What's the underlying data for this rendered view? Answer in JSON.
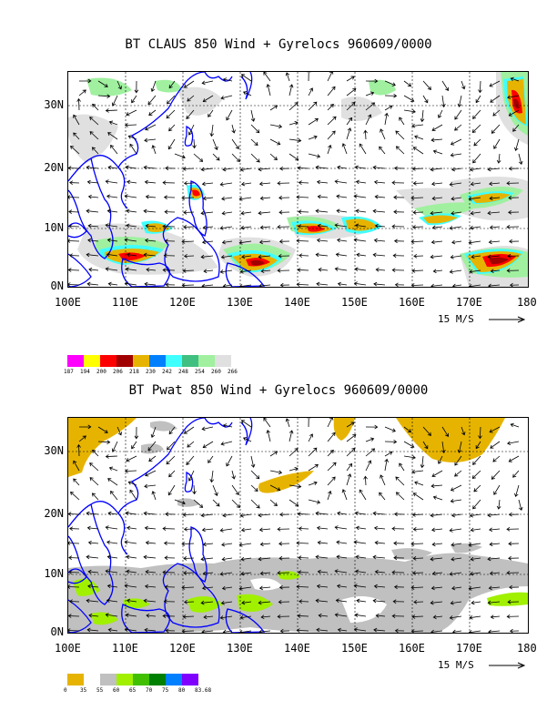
{
  "panel1": {
    "title": "BT CLAUS 850 Wind + Gyrelocs 960609/0000",
    "lat_labels": [
      "30N",
      "20N",
      "10N",
      "0N"
    ],
    "lon_labels": [
      "100E",
      "110E",
      "120E",
      "130E",
      "140E",
      "150E",
      "160E",
      "170E",
      "180"
    ],
    "scale_label": "15 M/S",
    "colorbar_colors": [
      "#ff00ff",
      "#ffff00",
      "#ff0000",
      "#a00000",
      "#e6b400",
      "#0080ff",
      "#40ffff",
      "#40c080",
      "#a0f0a0",
      "#e0e0e0"
    ],
    "colorbar_labels": [
      "187",
      "194",
      "200",
      "206",
      "218",
      "230",
      "242",
      "248",
      "254",
      "260",
      "266"
    ]
  },
  "panel2": {
    "title": "BT Pwat 850 Wind + Gyrelocs 960609/0000",
    "lat_labels": [
      "30N",
      "20N",
      "10N",
      "0N"
    ],
    "lon_labels": [
      "100E",
      "110E",
      "120E",
      "130E",
      "140E",
      "150E",
      "160E",
      "170E",
      "180"
    ],
    "scale_label": "15 M/S",
    "colorbar_colors": [
      "#e6b400",
      "#ffffff",
      "#c0c0c0",
      "#a0f000",
      "#40c000",
      "#008000",
      "#0080ff",
      "#8000ff"
    ],
    "colorbar_labels": [
      "0",
      "35",
      "55",
      "60",
      "65",
      "70",
      "75",
      "80",
      "83.68"
    ]
  }
}
